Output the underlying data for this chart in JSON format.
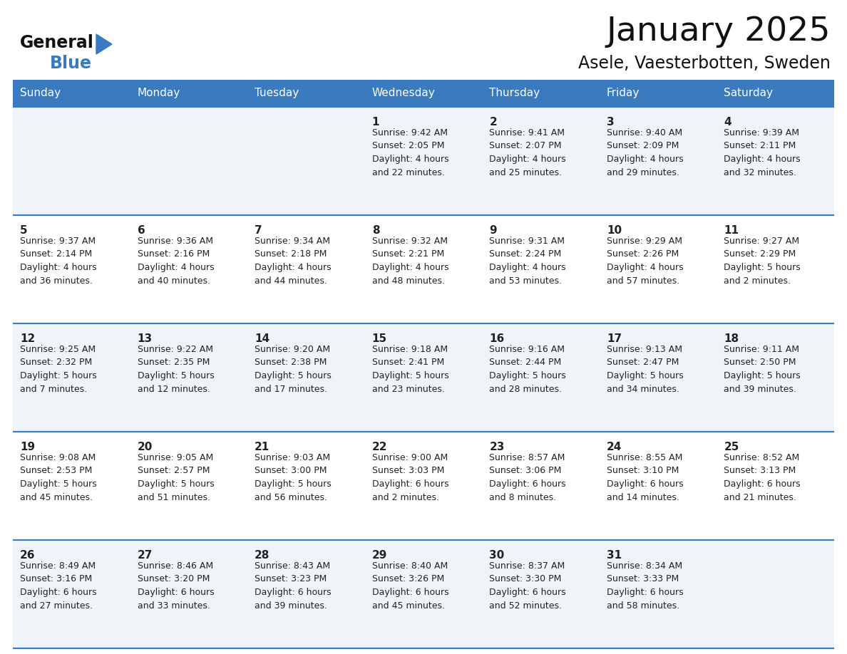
{
  "title": "January 2025",
  "subtitle": "Asele, Vaesterbotten, Sweden",
  "header_bg": "#3a7abf",
  "header_text_color": "#ffffff",
  "cell_bg_even": "#f0f3f7",
  "cell_bg_odd": "#ffffff",
  "border_color": "#3a7abf",
  "text_color": "#222222",
  "day_names": [
    "Sunday",
    "Monday",
    "Tuesday",
    "Wednesday",
    "Thursday",
    "Friday",
    "Saturday"
  ],
  "weeks": [
    [
      {
        "day": "",
        "info": ""
      },
      {
        "day": "",
        "info": ""
      },
      {
        "day": "",
        "info": ""
      },
      {
        "day": "1",
        "info": "Sunrise: 9:42 AM\nSunset: 2:05 PM\nDaylight: 4 hours\nand 22 minutes."
      },
      {
        "day": "2",
        "info": "Sunrise: 9:41 AM\nSunset: 2:07 PM\nDaylight: 4 hours\nand 25 minutes."
      },
      {
        "day": "3",
        "info": "Sunrise: 9:40 AM\nSunset: 2:09 PM\nDaylight: 4 hours\nand 29 minutes."
      },
      {
        "day": "4",
        "info": "Sunrise: 9:39 AM\nSunset: 2:11 PM\nDaylight: 4 hours\nand 32 minutes."
      }
    ],
    [
      {
        "day": "5",
        "info": "Sunrise: 9:37 AM\nSunset: 2:14 PM\nDaylight: 4 hours\nand 36 minutes."
      },
      {
        "day": "6",
        "info": "Sunrise: 9:36 AM\nSunset: 2:16 PM\nDaylight: 4 hours\nand 40 minutes."
      },
      {
        "day": "7",
        "info": "Sunrise: 9:34 AM\nSunset: 2:18 PM\nDaylight: 4 hours\nand 44 minutes."
      },
      {
        "day": "8",
        "info": "Sunrise: 9:32 AM\nSunset: 2:21 PM\nDaylight: 4 hours\nand 48 minutes."
      },
      {
        "day": "9",
        "info": "Sunrise: 9:31 AM\nSunset: 2:24 PM\nDaylight: 4 hours\nand 53 minutes."
      },
      {
        "day": "10",
        "info": "Sunrise: 9:29 AM\nSunset: 2:26 PM\nDaylight: 4 hours\nand 57 minutes."
      },
      {
        "day": "11",
        "info": "Sunrise: 9:27 AM\nSunset: 2:29 PM\nDaylight: 5 hours\nand 2 minutes."
      }
    ],
    [
      {
        "day": "12",
        "info": "Sunrise: 9:25 AM\nSunset: 2:32 PM\nDaylight: 5 hours\nand 7 minutes."
      },
      {
        "day": "13",
        "info": "Sunrise: 9:22 AM\nSunset: 2:35 PM\nDaylight: 5 hours\nand 12 minutes."
      },
      {
        "day": "14",
        "info": "Sunrise: 9:20 AM\nSunset: 2:38 PM\nDaylight: 5 hours\nand 17 minutes."
      },
      {
        "day": "15",
        "info": "Sunrise: 9:18 AM\nSunset: 2:41 PM\nDaylight: 5 hours\nand 23 minutes."
      },
      {
        "day": "16",
        "info": "Sunrise: 9:16 AM\nSunset: 2:44 PM\nDaylight: 5 hours\nand 28 minutes."
      },
      {
        "day": "17",
        "info": "Sunrise: 9:13 AM\nSunset: 2:47 PM\nDaylight: 5 hours\nand 34 minutes."
      },
      {
        "day": "18",
        "info": "Sunrise: 9:11 AM\nSunset: 2:50 PM\nDaylight: 5 hours\nand 39 minutes."
      }
    ],
    [
      {
        "day": "19",
        "info": "Sunrise: 9:08 AM\nSunset: 2:53 PM\nDaylight: 5 hours\nand 45 minutes."
      },
      {
        "day": "20",
        "info": "Sunrise: 9:05 AM\nSunset: 2:57 PM\nDaylight: 5 hours\nand 51 minutes."
      },
      {
        "day": "21",
        "info": "Sunrise: 9:03 AM\nSunset: 3:00 PM\nDaylight: 5 hours\nand 56 minutes."
      },
      {
        "day": "22",
        "info": "Sunrise: 9:00 AM\nSunset: 3:03 PM\nDaylight: 6 hours\nand 2 minutes."
      },
      {
        "day": "23",
        "info": "Sunrise: 8:57 AM\nSunset: 3:06 PM\nDaylight: 6 hours\nand 8 minutes."
      },
      {
        "day": "24",
        "info": "Sunrise: 8:55 AM\nSunset: 3:10 PM\nDaylight: 6 hours\nand 14 minutes."
      },
      {
        "day": "25",
        "info": "Sunrise: 8:52 AM\nSunset: 3:13 PM\nDaylight: 6 hours\nand 21 minutes."
      }
    ],
    [
      {
        "day": "26",
        "info": "Sunrise: 8:49 AM\nSunset: 3:16 PM\nDaylight: 6 hours\nand 27 minutes."
      },
      {
        "day": "27",
        "info": "Sunrise: 8:46 AM\nSunset: 3:20 PM\nDaylight: 6 hours\nand 33 minutes."
      },
      {
        "day": "28",
        "info": "Sunrise: 8:43 AM\nSunset: 3:23 PM\nDaylight: 6 hours\nand 39 minutes."
      },
      {
        "day": "29",
        "info": "Sunrise: 8:40 AM\nSunset: 3:26 PM\nDaylight: 6 hours\nand 45 minutes."
      },
      {
        "day": "30",
        "info": "Sunrise: 8:37 AM\nSunset: 3:30 PM\nDaylight: 6 hours\nand 52 minutes."
      },
      {
        "day": "31",
        "info": "Sunrise: 8:34 AM\nSunset: 3:33 PM\nDaylight: 6 hours\nand 58 minutes."
      },
      {
        "day": "",
        "info": ""
      }
    ]
  ],
  "logo_general_color": "#111111",
  "logo_blue_color": "#3a7abf",
  "logo_triangle_color": "#3a7abf",
  "title_fontsize": 34,
  "subtitle_fontsize": 17,
  "dayname_fontsize": 11,
  "daynum_fontsize": 11,
  "info_fontsize": 9
}
